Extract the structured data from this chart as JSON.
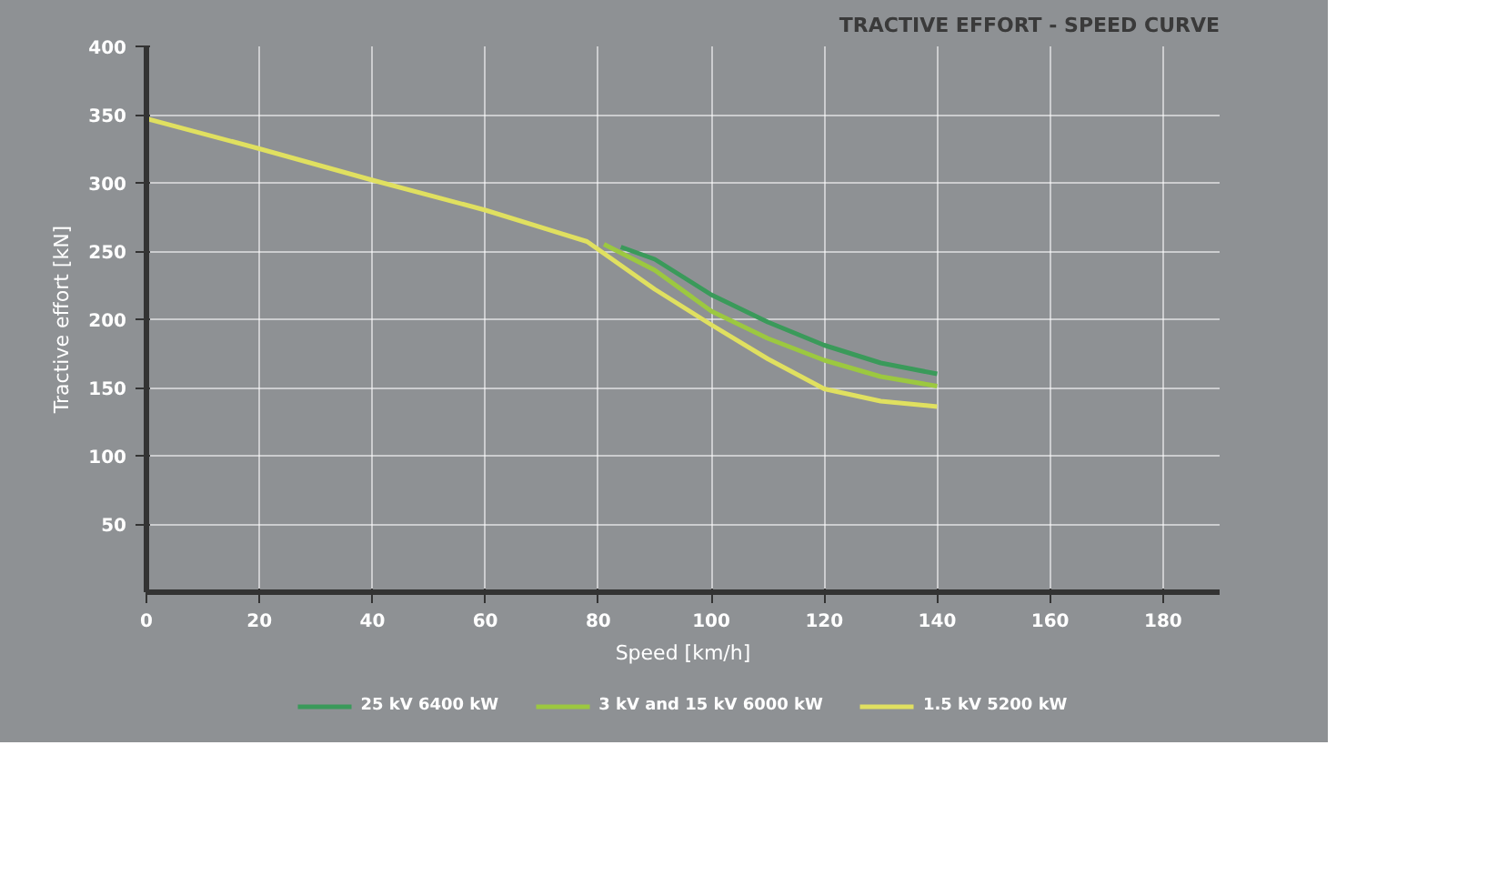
{
  "chart_data": {
    "type": "line",
    "title": "TRACTIVE EFFORT - SPEED CURVE",
    "xlabel": "Speed [km/h]",
    "ylabel": "Tractive effort [kN]",
    "xlim": [
      0,
      190
    ],
    "ylim": [
      0,
      400
    ],
    "xticks": [
      {
        "value": 0,
        "label": "0"
      },
      20,
      40,
      60,
      80,
      100,
      120,
      140,
      160,
      180
    ],
    "yticks": [
      50,
      100,
      150,
      200,
      250,
      300,
      350,
      400
    ],
    "grid": true,
    "legend": "bottom",
    "marker": "none",
    "line_style": "solid",
    "series": [
      {
        "name": "25 kV 6400 kW",
        "color": "#3a9a5a",
        "x": [
          84,
          90,
          100,
          110,
          120,
          130,
          140
        ],
        "values": [
          253,
          244,
          218,
          198,
          181,
          168,
          160
        ]
      },
      {
        "name": "3 kV and 15 kV 6000 kW",
        "color": "#9cc840",
        "x": [
          81,
          90,
          100,
          110,
          120,
          130,
          140
        ],
        "values": [
          255,
          236,
          206,
          186,
          170,
          158,
          151
        ]
      },
      {
        "name": "1.5 kV 5200 kW",
        "color": "#e0e060",
        "x": [
          0,
          20,
          40,
          60,
          78,
          90,
          100,
          110,
          120,
          130,
          140
        ],
        "values": [
          347,
          325,
          302,
          280,
          257,
          222,
          196,
          171,
          149,
          140,
          136
        ]
      }
    ]
  }
}
